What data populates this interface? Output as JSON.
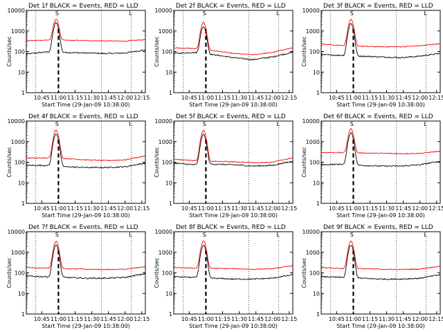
{
  "figure": {
    "x_axis_label": "Start Time (29-Jan-09 10:38:00)",
    "y_axis_label": "Counts/sec",
    "y_ticks": [
      "1",
      "10",
      "100",
      "1000",
      "10000"
    ],
    "x_ticks": [
      "10:45",
      "11:00",
      "11:15",
      "11:30",
      "11:45",
      "12:00",
      "12:15"
    ],
    "marker_labels": [
      "S",
      "L"
    ]
  },
  "chart_data": [
    {
      "type": "line",
      "title": "Det 1f BLACK = Events, RED = LLD",
      "xlabel": "Start Time (29-Jan-09 10:38:00)",
      "ylabel": "Counts/sec",
      "y_scale": "log",
      "ylim": [
        1,
        10000
      ],
      "xlim_minutes_after_start": [
        0,
        100
      ],
      "series": [
        {
          "name": "BLACK = Events",
          "color": "#000000",
          "peak": 2500,
          "baseline": [
            75,
            95,
            90,
            85,
            80,
            85,
            120
          ]
        },
        {
          "name": "RED = LLD",
          "color": "#ff0000",
          "peak": 3800,
          "baseline": [
            330,
            360,
            350,
            340,
            330,
            320,
            380
          ]
        }
      ]
    },
    {
      "type": "line",
      "title": "Det 2f BLACK = Events, RED = LLD",
      "xlabel": "Start Time (29-Jan-09 10:38:00)",
      "ylabel": "Counts/sec",
      "y_scale": "log",
      "ylim": [
        1,
        10000
      ],
      "xlim_minutes_after_start": [
        0,
        100
      ],
      "series": [
        {
          "name": "BLACK = Events",
          "color": "#000000",
          "peak": 1600,
          "baseline": [
            80,
            90,
            70,
            50,
            40,
            55,
            90
          ]
        },
        {
          "name": "RED = LLD",
          "color": "#ff0000",
          "peak": 2600,
          "baseline": [
            150,
            140,
            110,
            80,
            70,
            90,
            150
          ]
        }
      ]
    },
    {
      "type": "line",
      "title": "Det 3f BLACK = Events, RED = LLD",
      "xlabel": "Start Time (29-Jan-09 10:38:00)",
      "ylabel": "Counts/sec",
      "y_scale": "log",
      "ylim": [
        1,
        10000
      ],
      "xlim_minutes_after_start": [
        0,
        100
      ],
      "series": [
        {
          "name": "BLACK = Events",
          "color": "#000000",
          "peak": 2300,
          "baseline": [
            70,
            65,
            60,
            55,
            50,
            60,
            80
          ]
        },
        {
          "name": "RED = LLD",
          "color": "#ff0000",
          "peak": 3600,
          "baseline": [
            230,
            200,
            180,
            170,
            170,
            190,
            240
          ]
        }
      ]
    },
    {
      "type": "line",
      "title": "Det 4f BLACK = Events, RED = LLD",
      "xlabel": "Start Time (29-Jan-09 10:38:00)",
      "ylabel": "Counts/sec",
      "y_scale": "log",
      "ylim": [
        1,
        10000
      ],
      "xlim_minutes_after_start": [
        0,
        100
      ],
      "series": [
        {
          "name": "BLACK = Events",
          "color": "#000000",
          "peak": 2400,
          "baseline": [
            70,
            70,
            60,
            55,
            55,
            60,
            90
          ]
        },
        {
          "name": "RED = LLD",
          "color": "#ff0000",
          "peak": 3700,
          "baseline": [
            160,
            160,
            150,
            130,
            120,
            130,
            200
          ]
        }
      ]
    },
    {
      "type": "line",
      "title": "Det 5f BLACK = Events, RED = LLD",
      "xlabel": "Start Time (29-Jan-09 10:38:00)",
      "ylabel": "Counts/sec",
      "y_scale": "log",
      "ylim": [
        1,
        10000
      ],
      "xlim_minutes_after_start": [
        0,
        100
      ],
      "series": [
        {
          "name": "BLACK = Events",
          "color": "#000000",
          "peak": 2200,
          "baseline": [
            90,
            75,
            80,
            75,
            65,
            70,
            110
          ]
        },
        {
          "name": "RED = LLD",
          "color": "#ff0000",
          "peak": 3500,
          "baseline": [
            140,
            120,
            110,
            105,
            95,
            100,
            160
          ]
        }
      ]
    },
    {
      "type": "line",
      "title": "Det 6f BLACK = Events, RED = LLD",
      "xlabel": "Start Time (29-Jan-09 10:38:00)",
      "ylabel": "Counts/sec",
      "y_scale": "log",
      "ylim": [
        1,
        10000
      ],
      "xlim_minutes_after_start": [
        0,
        100
      ],
      "series": [
        {
          "name": "BLACK = Events",
          "color": "#000000",
          "peak": 2700,
          "baseline": [
            75,
            80,
            70,
            65,
            65,
            75,
            110
          ]
        },
        {
          "name": "RED = LLD",
          "color": "#ff0000",
          "peak": 4200,
          "baseline": [
            300,
            290,
            280,
            270,
            260,
            270,
            340
          ]
        }
      ]
    },
    {
      "type": "line",
      "title": "Det 7f BLACK = Events, RED = LLD",
      "xlabel": "Start Time (29-Jan-09 10:38:00)",
      "ylabel": "Counts/sec",
      "y_scale": "log",
      "ylim": [
        1,
        10000
      ],
      "xlim_minutes_after_start": [
        0,
        100
      ],
      "series": [
        {
          "name": "BLACK = Events",
          "color": "#000000",
          "peak": 2200,
          "baseline": [
            70,
            65,
            60,
            55,
            55,
            60,
            90
          ]
        },
        {
          "name": "RED = LLD",
          "color": "#ff0000",
          "peak": 3500,
          "baseline": [
            180,
            170,
            160,
            150,
            145,
            150,
            200
          ]
        }
      ]
    },
    {
      "type": "line",
      "title": "Det 8f BLACK = Events, RED = LLD",
      "xlabel": "Start Time (29-Jan-09 10:38:00)",
      "ylabel": "Counts/sec",
      "y_scale": "log",
      "ylim": [
        1,
        10000
      ],
      "xlim_minutes_after_start": [
        0,
        100
      ],
      "series": [
        {
          "name": "BLACK = Events",
          "color": "#000000",
          "peak": 2200,
          "baseline": [
            65,
            60,
            55,
            50,
            50,
            55,
            80
          ]
        },
        {
          "name": "RED = LLD",
          "color": "#ff0000",
          "peak": 3500,
          "baseline": [
            180,
            170,
            165,
            160,
            150,
            160,
            220
          ]
        }
      ]
    },
    {
      "type": "line",
      "title": "Det 9f BLACK = Events, RED = LLD",
      "xlabel": "Start Time (29-Jan-09 10:38:00)",
      "ylabel": "Counts/sec",
      "y_scale": "log",
      "ylim": [
        1,
        10000
      ],
      "xlim_minutes_after_start": [
        0,
        100
      ],
      "series": [
        {
          "name": "BLACK = Events",
          "color": "#000000",
          "peak": 2200,
          "baseline": [
            65,
            60,
            55,
            50,
            50,
            55,
            80
          ]
        },
        {
          "name": "RED = LLD",
          "color": "#ff0000",
          "peak": 3500,
          "baseline": [
            180,
            165,
            160,
            150,
            145,
            155,
            210
          ]
        }
      ]
    }
  ]
}
